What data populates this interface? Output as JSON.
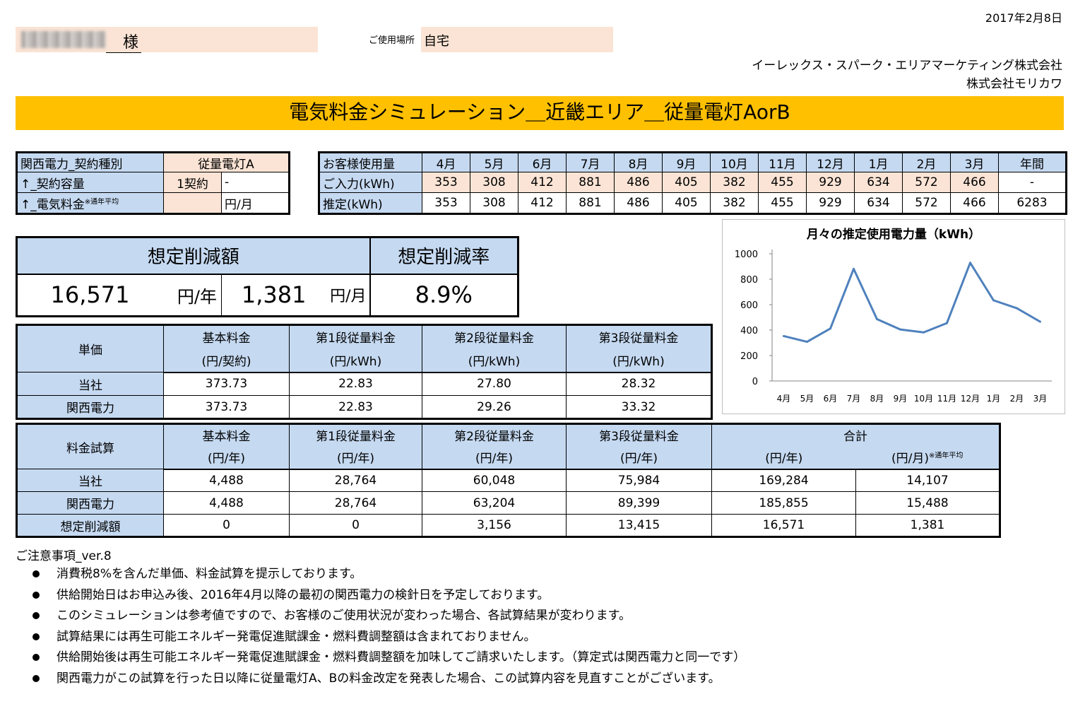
{
  "date": "2017年2月8日",
  "customer": {
    "suffix": "様",
    "location_label": "ご使用場所",
    "location_value": "自宅"
  },
  "company": {
    "line1": "イーレックス・スパーク・エリアマーケティング株式会社",
    "line2": "株式会社モリカワ"
  },
  "banner_title": "電気料金シミュレーション＿近畿エリア＿従量電灯AorB",
  "contract": {
    "row1_label": "関西電力_契約種別",
    "row1_value": "従量電灯A",
    "row2_label": "↑_契約容量",
    "row2_value": "1契約",
    "row2_value2": "-",
    "row3_label": "↑_電気料金",
    "row3_note": "※通年平均",
    "row3_unit": "円/月"
  },
  "usage": {
    "header_label": "お客様使用量",
    "months": [
      "4月",
      "5月",
      "6月",
      "7月",
      "8月",
      "9月",
      "10月",
      "11月",
      "12月",
      "1月",
      "2月",
      "3月"
    ],
    "annual_label": "年間",
    "input_label": "ご入力(kWh)",
    "input_values": [
      "353",
      "308",
      "412",
      "881",
      "486",
      "405",
      "382",
      "455",
      "929",
      "634",
      "572",
      "466"
    ],
    "input_annual": "-",
    "est_label": "推定(kWh)",
    "est_values": [
      "353",
      "308",
      "412",
      "881",
      "486",
      "405",
      "382",
      "455",
      "929",
      "634",
      "572",
      "466"
    ],
    "est_annual": "6283"
  },
  "savings": {
    "amount_label": "想定削減額",
    "rate_label": "想定削減率",
    "yearly_value": "16,571",
    "yearly_unit": "円/年",
    "monthly_value": "1,381",
    "monthly_unit": "円/月",
    "rate_value": "8.9%"
  },
  "unit_price": {
    "title": "単価",
    "headers": [
      "基本料金",
      "第1段従量料金",
      "第2段従量料金",
      "第3段従量料金"
    ],
    "units": [
      "(円/契約)",
      "(円/kWh)",
      "(円/kWh)",
      "(円/kWh)"
    ],
    "rows": [
      {
        "label": "当社",
        "values": [
          "373.73",
          "22.83",
          "27.80",
          "28.32"
        ]
      },
      {
        "label": "関西電力",
        "values": [
          "373.73",
          "22.83",
          "29.26",
          "33.32"
        ]
      }
    ]
  },
  "fee_calc": {
    "title": "料金試算",
    "headers": [
      "基本料金",
      "第1段従量料金",
      "第2段従量料金",
      "第3段従量料金"
    ],
    "units": [
      "(円/年)",
      "(円/年)",
      "(円/年)",
      "(円/年)"
    ],
    "total_label": "合計",
    "total_year_unit": "(円/年)",
    "total_month_unit": "(円/月)",
    "total_note": "※通年平均",
    "rows": [
      {
        "label": "当社",
        "values": [
          "4,488",
          "28,764",
          "60,048",
          "75,984",
          "169,284",
          "14,107"
        ]
      },
      {
        "label": "関西電力",
        "values": [
          "4,488",
          "28,764",
          "63,204",
          "89,399",
          "185,855",
          "15,488"
        ]
      },
      {
        "label": "想定削減額",
        "values": [
          "0",
          "0",
          "3,156",
          "13,415",
          "16,571",
          "1,381"
        ]
      }
    ]
  },
  "notes": {
    "heading": "ご注意事項_ver.8",
    "items": [
      "消費税8%を含んだ単価、料金試算を提示しております。",
      "供給開始日はお申込み後、2016年4月以降の最初の関西電力の検針日を予定しております。",
      "このシミュレーションは参考値ですので、お客様のご使用状況が変わった場合、各試算結果が変わります。",
      "試算結果には再生可能エネルギー発電促進賦課金・燃料費調整額は含まれておりません。",
      "供給開始後は再生可能エネルギー発電促進賦課金・燃料費調整額を加味してご請求いたします。（算定式は関西電力と同一です）",
      "関西電力がこの試算を行った日以降に従量電灯A、Bの料金改定を発表した場合、この試算内容を見直すことがございます。"
    ]
  },
  "chart_data": {
    "type": "line",
    "title": "月々の推定使用電力量（kWh）",
    "categories": [
      "4月",
      "5月",
      "6月",
      "7月",
      "8月",
      "9月",
      "10月",
      "11月",
      "12月",
      "1月",
      "2月",
      "3月"
    ],
    "values": [
      353,
      308,
      412,
      881,
      486,
      405,
      382,
      455,
      929,
      634,
      572,
      466
    ],
    "ylim": [
      0,
      1000
    ],
    "yticks": [
      0,
      200,
      400,
      600,
      800,
      1000
    ],
    "grid": false,
    "legend": "none",
    "line_color": "#4f81bd"
  }
}
